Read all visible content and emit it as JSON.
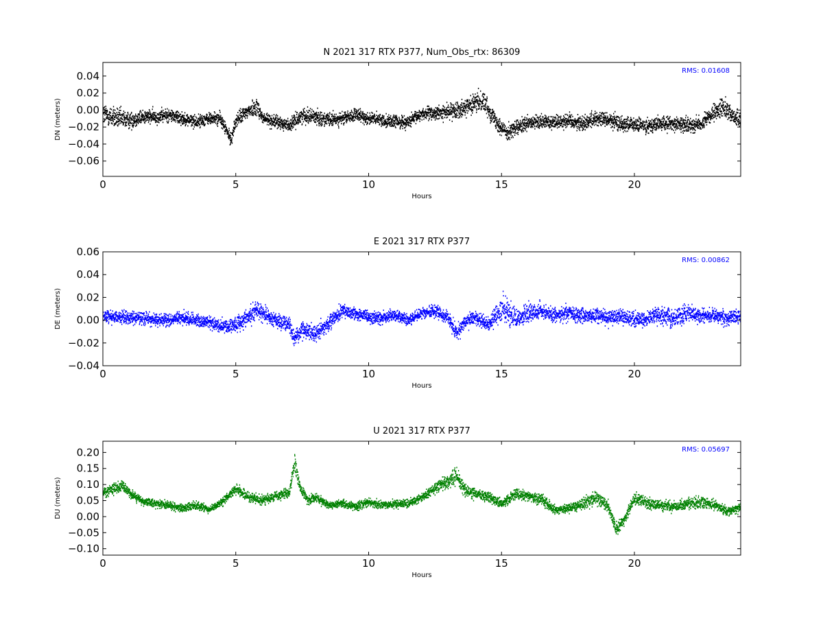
{
  "chart_data": [
    {
      "type": "scatter",
      "title": "N 2021 317 RTX  P377, Num_Obs_rtx: 86309",
      "xlabel": "Hours",
      "ylabel": "DN (meters)",
      "xlim": [
        0,
        24
      ],
      "ylim": [
        -0.078,
        0.056
      ],
      "xticks": [
        0,
        5,
        10,
        15,
        20
      ],
      "yticks": [
        -0.06,
        -0.04,
        -0.02,
        0.0,
        0.02,
        0.04
      ],
      "ytick_labels": [
        "−0.06",
        "−0.04",
        "−0.02",
        "0.00",
        "0.02",
        "0.04"
      ],
      "annotation": "RMS:  0.01608",
      "annotation_color": "#0000ff",
      "color": "#000000",
      "grid": false,
      "series": [
        {
          "x": [
            0,
            0.5,
            1,
            1.5,
            2,
            2.5,
            3,
            3.5,
            4,
            4.4,
            4.6,
            4.8,
            5,
            5.5,
            5.8,
            6,
            6.5,
            7,
            7.5,
            8,
            8.5,
            9,
            9.5,
            10,
            10.5,
            11,
            11.5,
            12,
            12.5,
            13,
            13.5,
            14,
            14.3,
            14.5,
            15,
            15.2,
            15.5,
            16,
            16.5,
            17,
            17.5,
            18,
            18.5,
            19,
            19.5,
            20,
            20.5,
            21,
            21.5,
            22,
            22.5,
            23,
            23.3,
            23.6,
            24
          ],
          "center": [
            -0.005,
            -0.01,
            -0.012,
            -0.008,
            -0.008,
            -0.006,
            -0.01,
            -0.014,
            -0.01,
            -0.01,
            -0.022,
            -0.035,
            -0.012,
            0.0,
            0.004,
            -0.01,
            -0.014,
            -0.018,
            -0.006,
            -0.008,
            -0.012,
            -0.01,
            -0.006,
            -0.01,
            -0.012,
            -0.014,
            -0.014,
            -0.004,
            -0.004,
            -0.002,
            0.002,
            0.008,
            0.012,
            0.0,
            -0.022,
            -0.026,
            -0.022,
            -0.016,
            -0.014,
            -0.014,
            -0.012,
            -0.016,
            -0.01,
            -0.012,
            -0.016,
            -0.018,
            -0.018,
            -0.016,
            -0.016,
            -0.018,
            -0.016,
            -0.004,
            0.004,
            -0.004,
            -0.014
          ],
          "spread": [
            0.022,
            0.02,
            0.016,
            0.014,
            0.013,
            0.013,
            0.012,
            0.012,
            0.012,
            0.012,
            0.012,
            0.012,
            0.013,
            0.015,
            0.016,
            0.014,
            0.012,
            0.012,
            0.014,
            0.014,
            0.013,
            0.012,
            0.012,
            0.012,
            0.012,
            0.012,
            0.012,
            0.012,
            0.013,
            0.014,
            0.016,
            0.018,
            0.02,
            0.016,
            0.016,
            0.016,
            0.015,
            0.014,
            0.014,
            0.014,
            0.014,
            0.015,
            0.015,
            0.015,
            0.015,
            0.014,
            0.014,
            0.014,
            0.014,
            0.014,
            0.014,
            0.016,
            0.018,
            0.016,
            0.014
          ]
        }
      ]
    },
    {
      "type": "scatter",
      "title": "E 2021 317 RTX  P377",
      "xlabel": "Hours",
      "ylabel": "DE (meters)",
      "xlim": [
        0,
        24
      ],
      "ylim": [
        -0.04,
        0.06
      ],
      "xticks": [
        0,
        5,
        10,
        15,
        20
      ],
      "yticks": [
        -0.04,
        -0.02,
        0.0,
        0.02,
        0.04,
        0.06
      ],
      "ytick_labels": [
        "−0.04",
        "−0.02",
        "0.00",
        "0.02",
        "0.04",
        "0.06"
      ],
      "annotation": "RMS:  0.00862",
      "annotation_color": "#0000ff",
      "color": "#0000ff",
      "grid": false,
      "series": [
        {
          "x": [
            0,
            0.5,
            1,
            1.5,
            2,
            2.5,
            3,
            3.5,
            4,
            4.5,
            5,
            5.5,
            5.8,
            6,
            6.5,
            7,
            7.2,
            7.5,
            8,
            8.5,
            9,
            9.5,
            10,
            10.5,
            11,
            11.5,
            12,
            12.5,
            13,
            13.3,
            13.6,
            14,
            14.5,
            14.8,
            15,
            15.3,
            15.6,
            16,
            16.5,
            17,
            17.5,
            18,
            18.5,
            19,
            19.5,
            20,
            20.5,
            21,
            21.5,
            22,
            22.5,
            23,
            23.5,
            24
          ],
          "center": [
            0.004,
            0.003,
            0.002,
            0.002,
            0.0,
            0.0,
            0.002,
            0.0,
            -0.002,
            -0.006,
            -0.004,
            0.004,
            0.01,
            0.006,
            0.0,
            -0.004,
            -0.016,
            -0.008,
            -0.012,
            -0.002,
            0.008,
            0.006,
            0.002,
            0.002,
            0.004,
            0.0,
            0.006,
            0.008,
            0.002,
            -0.012,
            -0.002,
            0.002,
            -0.004,
            0.006,
            0.01,
            0.006,
            0.002,
            0.006,
            0.008,
            0.004,
            0.006,
            0.004,
            0.004,
            0.002,
            0.004,
            0.0,
            0.002,
            0.004,
            0.002,
            0.006,
            0.004,
            0.004,
            0.002,
            0.004
          ],
          "spread": [
            0.01,
            0.009,
            0.009,
            0.009,
            0.009,
            0.009,
            0.009,
            0.009,
            0.009,
            0.01,
            0.011,
            0.013,
            0.014,
            0.012,
            0.01,
            0.011,
            0.012,
            0.012,
            0.012,
            0.01,
            0.01,
            0.009,
            0.009,
            0.009,
            0.009,
            0.009,
            0.009,
            0.009,
            0.009,
            0.01,
            0.01,
            0.01,
            0.01,
            0.016,
            0.018,
            0.018,
            0.016,
            0.013,
            0.012,
            0.011,
            0.011,
            0.011,
            0.011,
            0.011,
            0.01,
            0.01,
            0.01,
            0.012,
            0.013,
            0.012,
            0.011,
            0.011,
            0.011,
            0.01
          ]
        }
      ]
    },
    {
      "type": "scatter",
      "title": "U 2021 317 RTX  P377",
      "xlabel": "Hours",
      "ylabel": "DU (meters)",
      "xlim": [
        0,
        24
      ],
      "ylim": [
        -0.12,
        0.235
      ],
      "xticks": [
        0,
        5,
        10,
        15,
        20
      ],
      "yticks": [
        -0.1,
        -0.05,
        0.0,
        0.05,
        0.1,
        0.15,
        0.2
      ],
      "ytick_labels": [
        "−0.10",
        "−0.05",
        "0.00",
        "0.05",
        "0.10",
        "0.15",
        "0.20"
      ],
      "annotation": "RMS:  0.05697",
      "annotation_color": "#0000ff",
      "color": "#008000",
      "grid": false,
      "series": [
        {
          "x": [
            0,
            0.3,
            0.7,
            1,
            1.5,
            2,
            2.5,
            3,
            3.5,
            4,
            4.5,
            5,
            5.5,
            6,
            6.5,
            7,
            7.2,
            7.4,
            7.7,
            8,
            8.5,
            9,
            9.5,
            10,
            10.5,
            11,
            11.5,
            12,
            12.5,
            13,
            13.3,
            13.6,
            14,
            14.5,
            15,
            15.5,
            16,
            16.5,
            17,
            17.5,
            18,
            18.5,
            19,
            19.3,
            19.6,
            20,
            20.5,
            21,
            21.5,
            22,
            22.5,
            23,
            23.5,
            24
          ],
          "center": [
            0.075,
            0.085,
            0.095,
            0.075,
            0.045,
            0.04,
            0.035,
            0.025,
            0.035,
            0.02,
            0.05,
            0.085,
            0.06,
            0.05,
            0.065,
            0.075,
            0.17,
            0.09,
            0.05,
            0.06,
            0.035,
            0.04,
            0.03,
            0.045,
            0.035,
            0.04,
            0.04,
            0.06,
            0.09,
            0.11,
            0.13,
            0.08,
            0.07,
            0.06,
            0.04,
            0.07,
            0.065,
            0.055,
            0.02,
            0.025,
            0.04,
            0.06,
            0.03,
            -0.04,
            -0.01,
            0.06,
            0.04,
            0.035,
            0.03,
            0.04,
            0.045,
            0.035,
            0.015,
            0.03
          ],
          "spread": [
            0.025,
            0.025,
            0.03,
            0.025,
            0.02,
            0.02,
            0.02,
            0.02,
            0.02,
            0.02,
            0.022,
            0.025,
            0.025,
            0.025,
            0.025,
            0.03,
            0.04,
            0.03,
            0.025,
            0.02,
            0.02,
            0.02,
            0.02,
            0.02,
            0.02,
            0.02,
            0.022,
            0.025,
            0.028,
            0.035,
            0.04,
            0.035,
            0.03,
            0.028,
            0.025,
            0.03,
            0.03,
            0.028,
            0.022,
            0.022,
            0.028,
            0.035,
            0.03,
            0.03,
            0.028,
            0.032,
            0.028,
            0.025,
            0.025,
            0.028,
            0.028,
            0.025,
            0.022,
            0.02
          ]
        }
      ]
    }
  ]
}
